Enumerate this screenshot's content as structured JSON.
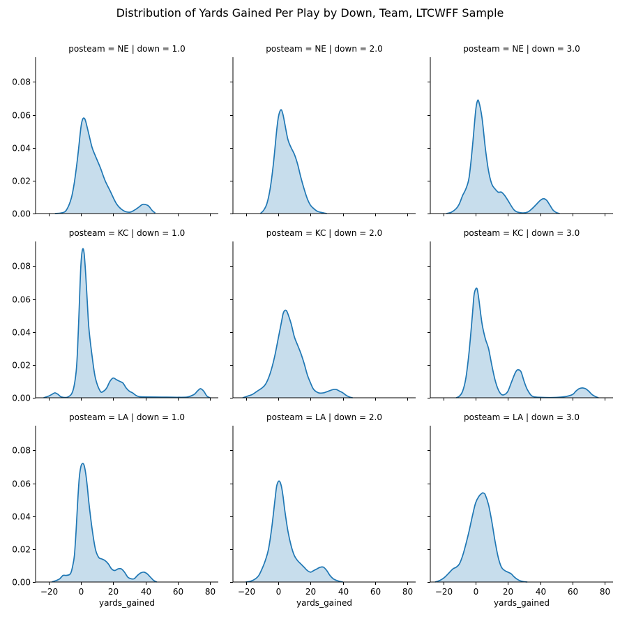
{
  "figure": {
    "title": "Distribution of Yards Gained Per Play by Down, Team, LTCWFF Sample"
  },
  "colors": {
    "line": "#1f77b4",
    "fill": "#1f77b4",
    "fill_opacity": 0.25
  },
  "chart_data": [
    {
      "type": "area",
      "title": "posteam = NE | down = 1.0",
      "xlabel": "",
      "ylabel": "",
      "xlim": [
        -28,
        85
      ],
      "ylim": [
        0,
        0.095
      ],
      "xticks": [
        -20,
        0,
        20,
        40,
        60,
        80
      ],
      "yticks": [
        0.0,
        0.02,
        0.04,
        0.06,
        0.08
      ],
      "yticklabels": [
        "0.00",
        "0.02",
        "0.04",
        "0.06",
        "0.08"
      ],
      "show_xticklabels": false,
      "show_yticklabels": true,
      "x": [
        -16,
        -12,
        -9,
        -6,
        -4,
        -2,
        0,
        1,
        2,
        3,
        5,
        7,
        9,
        12,
        15,
        18,
        22,
        26,
        30,
        33,
        36,
        38,
        40,
        42,
        44,
        46
      ],
      "y": [
        0.0,
        0.0004,
        0.002,
        0.009,
        0.019,
        0.034,
        0.052,
        0.057,
        0.058,
        0.056,
        0.048,
        0.04,
        0.035,
        0.028,
        0.02,
        0.014,
        0.006,
        0.002,
        0.0008,
        0.002,
        0.004,
        0.0055,
        0.0055,
        0.0045,
        0.002,
        0.0003
      ]
    },
    {
      "type": "area",
      "title": "posteam = NE | down = 2.0",
      "xlabel": "",
      "ylabel": "",
      "xlim": [
        -28,
        85
      ],
      "ylim": [
        0,
        0.095
      ],
      "xticks": [
        -20,
        0,
        20,
        40,
        60,
        80
      ],
      "yticks": [
        0.0,
        0.02,
        0.04,
        0.06,
        0.08
      ],
      "yticklabels": [
        "0.00",
        "0.02",
        "0.04",
        "0.06",
        "0.08"
      ],
      "show_xticklabels": false,
      "show_yticklabels": false,
      "x": [
        -11,
        -9,
        -7,
        -5,
        -3,
        -1,
        0,
        1,
        2,
        3,
        4,
        6,
        8,
        10,
        12,
        14,
        16,
        18,
        20,
        22,
        24,
        26,
        28,
        30
      ],
      "y": [
        0.0,
        0.002,
        0.006,
        0.015,
        0.03,
        0.05,
        0.058,
        0.062,
        0.063,
        0.06,
        0.055,
        0.045,
        0.04,
        0.036,
        0.03,
        0.022,
        0.015,
        0.009,
        0.005,
        0.003,
        0.0015,
        0.0008,
        0.0004,
        0.0
      ]
    },
    {
      "type": "area",
      "title": "posteam = NE | down = 3.0",
      "xlabel": "",
      "ylabel": "",
      "xlim": [
        -28,
        85
      ],
      "ylim": [
        0,
        0.095
      ],
      "xticks": [
        -20,
        0,
        20,
        40,
        60,
        80
      ],
      "yticks": [
        0.0,
        0.02,
        0.04,
        0.06,
        0.08
      ],
      "yticklabels": [
        "0.00",
        "0.02",
        "0.04",
        "0.06",
        "0.08"
      ],
      "show_xticklabels": false,
      "show_yticklabels": false,
      "x": [
        -18,
        -15,
        -12,
        -10,
        -8,
        -6,
        -4,
        -2,
        0,
        1,
        2,
        4,
        6,
        8,
        10,
        12,
        14,
        16,
        18,
        20,
        24,
        28,
        32,
        35,
        38,
        40,
        42,
        44,
        46,
        48,
        50,
        52
      ],
      "y": [
        0.0,
        0.0008,
        0.003,
        0.006,
        0.011,
        0.015,
        0.022,
        0.04,
        0.062,
        0.068,
        0.068,
        0.058,
        0.04,
        0.026,
        0.018,
        0.015,
        0.013,
        0.013,
        0.011,
        0.008,
        0.002,
        0.0005,
        0.0008,
        0.003,
        0.006,
        0.008,
        0.009,
        0.008,
        0.005,
        0.002,
        0.0006,
        0.0
      ]
    },
    {
      "type": "area",
      "title": "posteam = KC | down = 1.0",
      "xlabel": "",
      "ylabel": "",
      "xlim": [
        -28,
        85
      ],
      "ylim": [
        0,
        0.095
      ],
      "xticks": [
        -20,
        0,
        20,
        40,
        60,
        80
      ],
      "yticks": [
        0.0,
        0.02,
        0.04,
        0.06,
        0.08
      ],
      "yticklabels": [
        "0.00",
        "0.02",
        "0.04",
        "0.06",
        "0.08"
      ],
      "show_xticklabels": false,
      "show_yticklabels": true,
      "x": [
        -23,
        -20,
        -18,
        -16,
        -14,
        -12,
        -8,
        -5,
        -3,
        -2,
        -1,
        0,
        1,
        2,
        3,
        4,
        5,
        7,
        9,
        12,
        14,
        16,
        18,
        20,
        22,
        24,
        26,
        28,
        30,
        32,
        34,
        36,
        40,
        50,
        60,
        66,
        70,
        72,
        74,
        76,
        78,
        80
      ],
      "y": [
        0.0,
        0.001,
        0.002,
        0.003,
        0.002,
        0.0005,
        0.0005,
        0.004,
        0.015,
        0.03,
        0.055,
        0.08,
        0.09,
        0.088,
        0.075,
        0.058,
        0.042,
        0.025,
        0.012,
        0.004,
        0.004,
        0.006,
        0.01,
        0.012,
        0.011,
        0.01,
        0.009,
        0.006,
        0.004,
        0.003,
        0.0015,
        0.0007,
        0.0005,
        0.0004,
        0.0003,
        0.0005,
        0.002,
        0.004,
        0.0055,
        0.004,
        0.001,
        0.0
      ]
    },
    {
      "type": "area",
      "title": "posteam = KC | down = 2.0",
      "xlabel": "",
      "ylabel": "",
      "xlim": [
        -28,
        85
      ],
      "ylim": [
        0,
        0.095
      ],
      "xticks": [
        -20,
        0,
        20,
        40,
        60,
        80
      ],
      "yticks": [
        0.0,
        0.02,
        0.04,
        0.06,
        0.08
      ],
      "yticklabels": [
        "0.00",
        "0.02",
        "0.04",
        "0.06",
        "0.08"
      ],
      "show_xticklabels": false,
      "show_yticklabels": false,
      "x": [
        -22,
        -19,
        -16,
        -13,
        -10,
        -8,
        -6,
        -4,
        -2,
        0,
        2,
        3,
        4,
        5,
        6,
        8,
        10,
        12,
        14,
        16,
        18,
        20,
        22,
        25,
        28,
        31,
        34,
        36,
        38,
        40,
        42,
        44,
        46
      ],
      "y": [
        0.0,
        0.001,
        0.002,
        0.004,
        0.006,
        0.008,
        0.012,
        0.018,
        0.026,
        0.036,
        0.046,
        0.051,
        0.053,
        0.053,
        0.051,
        0.045,
        0.037,
        0.032,
        0.027,
        0.021,
        0.014,
        0.009,
        0.005,
        0.003,
        0.003,
        0.004,
        0.005,
        0.005,
        0.004,
        0.003,
        0.0015,
        0.0005,
        0.0
      ]
    },
    {
      "type": "area",
      "title": "posteam = KC | down = 3.0",
      "xlabel": "",
      "ylabel": "",
      "xlim": [
        -28,
        85
      ],
      "ylim": [
        0,
        0.095
      ],
      "xticks": [
        -20,
        0,
        20,
        40,
        60,
        80
      ],
      "yticks": [
        0.0,
        0.02,
        0.04,
        0.06,
        0.08
      ],
      "yticklabels": [
        "0.00",
        "0.02",
        "0.04",
        "0.06",
        "0.08"
      ],
      "show_xticklabels": false,
      "show_yticklabels": false,
      "x": [
        -12,
        -10,
        -8,
        -6,
        -4,
        -2,
        -1,
        0,
        1,
        2,
        4,
        6,
        8,
        10,
        12,
        14,
        16,
        18,
        20,
        22,
        24,
        25,
        26,
        28,
        30,
        32,
        35,
        40,
        50,
        56,
        60,
        62,
        64,
        66,
        68,
        70,
        72,
        74,
        76
      ],
      "y": [
        0.0,
        0.001,
        0.004,
        0.012,
        0.028,
        0.05,
        0.062,
        0.066,
        0.066,
        0.06,
        0.045,
        0.036,
        0.03,
        0.02,
        0.011,
        0.005,
        0.002,
        0.002,
        0.004,
        0.009,
        0.014,
        0.016,
        0.017,
        0.016,
        0.01,
        0.005,
        0.001,
        0.0003,
        0.0002,
        0.0008,
        0.002,
        0.004,
        0.0055,
        0.006,
        0.0055,
        0.004,
        0.002,
        0.0008,
        0.0
      ]
    },
    {
      "type": "area",
      "title": "posteam = LA | down = 1.0",
      "xlabel": "yards_gained",
      "ylabel": "",
      "xlim": [
        -28,
        85
      ],
      "ylim": [
        0,
        0.095
      ],
      "xticks": [
        -20,
        0,
        20,
        40,
        60,
        80
      ],
      "yticks": [
        0.0,
        0.02,
        0.04,
        0.06,
        0.08
      ],
      "yticklabels": [
        "0.00",
        "0.02",
        "0.04",
        "0.06",
        "0.08"
      ],
      "xticklabels": [
        "−20",
        "0",
        "20",
        "40",
        "60",
        "80"
      ],
      "show_xticklabels": true,
      "show_yticklabels": true,
      "x": [
        -18,
        -15,
        -13,
        -11,
        -9,
        -7,
        -6,
        -5,
        -4,
        -3,
        -2,
        -1,
        0,
        1,
        2,
        3,
        4,
        5,
        7,
        9,
        11,
        13,
        15,
        17,
        19,
        21,
        23,
        25,
        27,
        29,
        31,
        33,
        35,
        37,
        39,
        41,
        43,
        45,
        47
      ],
      "y": [
        0.0,
        0.001,
        0.002,
        0.004,
        0.004,
        0.0045,
        0.006,
        0.01,
        0.016,
        0.03,
        0.048,
        0.063,
        0.07,
        0.072,
        0.071,
        0.066,
        0.058,
        0.048,
        0.032,
        0.02,
        0.015,
        0.014,
        0.013,
        0.011,
        0.008,
        0.007,
        0.008,
        0.008,
        0.006,
        0.003,
        0.002,
        0.002,
        0.004,
        0.0055,
        0.006,
        0.005,
        0.003,
        0.001,
        0.0
      ]
    },
    {
      "type": "area",
      "title": "posteam = LA | down = 2.0",
      "xlabel": "yards_gained",
      "ylabel": "",
      "xlim": [
        -28,
        85
      ],
      "ylim": [
        0,
        0.095
      ],
      "xticks": [
        -20,
        0,
        20,
        40,
        60,
        80
      ],
      "yticks": [
        0.0,
        0.02,
        0.04,
        0.06,
        0.08
      ],
      "yticklabels": [
        "0.00",
        "0.02",
        "0.04",
        "0.06",
        "0.08"
      ],
      "xticklabels": [
        "−20",
        "0",
        "20",
        "40",
        "60",
        "80"
      ],
      "show_xticklabels": true,
      "show_yticklabels": false,
      "x": [
        -20,
        -17,
        -14,
        -12,
        -10,
        -8,
        -6,
        -4,
        -2,
        -1,
        0,
        1,
        2,
        3,
        4,
        6,
        8,
        10,
        12,
        14,
        16,
        18,
        20,
        22,
        24,
        26,
        28,
        30,
        32,
        34,
        36,
        38,
        40
      ],
      "y": [
        0.0,
        0.0005,
        0.002,
        0.004,
        0.008,
        0.013,
        0.02,
        0.033,
        0.05,
        0.058,
        0.061,
        0.061,
        0.058,
        0.052,
        0.044,
        0.031,
        0.022,
        0.016,
        0.013,
        0.011,
        0.009,
        0.007,
        0.006,
        0.007,
        0.008,
        0.009,
        0.009,
        0.007,
        0.004,
        0.002,
        0.001,
        0.0004,
        0.0
      ]
    },
    {
      "type": "area",
      "title": "posteam = LA | down = 3.0",
      "xlabel": "yards_gained",
      "ylabel": "",
      "xlim": [
        -28,
        85
      ],
      "ylim": [
        0,
        0.095
      ],
      "xticks": [
        -20,
        0,
        20,
        40,
        60,
        80
      ],
      "yticks": [
        0.0,
        0.02,
        0.04,
        0.06,
        0.08
      ],
      "yticklabels": [
        "0.00",
        "0.02",
        "0.04",
        "0.06",
        "0.08"
      ],
      "xticklabels": [
        "−20",
        "0",
        "20",
        "40",
        "60",
        "80"
      ],
      "show_xticklabels": true,
      "show_yticklabels": false,
      "x": [
        -25,
        -22,
        -19,
        -16,
        -14,
        -12,
        -10,
        -8,
        -6,
        -4,
        -2,
        0,
        2,
        4,
        5,
        6,
        8,
        10,
        12,
        14,
        16,
        18,
        20,
        22,
        24,
        26,
        28,
        30,
        32
      ],
      "y": [
        0.0,
        0.001,
        0.003,
        0.006,
        0.008,
        0.009,
        0.011,
        0.016,
        0.023,
        0.031,
        0.04,
        0.048,
        0.052,
        0.054,
        0.054,
        0.053,
        0.047,
        0.037,
        0.025,
        0.015,
        0.009,
        0.007,
        0.006,
        0.005,
        0.003,
        0.0015,
        0.0006,
        0.0002,
        0.0
      ]
    }
  ]
}
